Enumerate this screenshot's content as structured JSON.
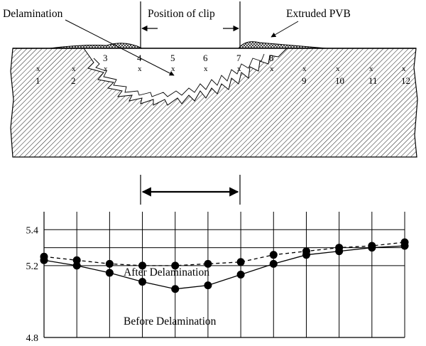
{
  "diagram": {
    "labels": {
      "delamination": "Delamination",
      "position_of_clip": "Position of clip",
      "extruded_pvb": "Extruded PVB"
    },
    "points": [
      "1",
      "2",
      "3",
      "4",
      "5",
      "6",
      "7",
      "8",
      "9",
      "10",
      "11",
      "12"
    ],
    "point_marker": "x"
  },
  "chart_data": {
    "type": "line",
    "title": "",
    "xlabel": "",
    "ylabel": "",
    "x": [
      1,
      2,
      3,
      4,
      5,
      6,
      7,
      8,
      9,
      10,
      11,
      12
    ],
    "ylim": [
      4.8,
      5.5
    ],
    "yticks": [
      "5.4",
      "5.2",
      "4.8"
    ],
    "yticks_values": [
      5.4,
      5.2,
      4.8
    ],
    "grid": true,
    "series": [
      {
        "name": "After Delamination",
        "style": "dashed",
        "values": [
          5.25,
          5.23,
          5.21,
          5.2,
          5.2,
          5.21,
          5.22,
          5.26,
          5.28,
          5.3,
          5.31,
          5.33
        ]
      },
      {
        "name": "Before Delamination",
        "style": "solid",
        "values": [
          5.23,
          5.2,
          5.16,
          5.11,
          5.07,
          5.09,
          5.15,
          5.21,
          5.26,
          5.28,
          5.3,
          5.31
        ]
      }
    ]
  }
}
